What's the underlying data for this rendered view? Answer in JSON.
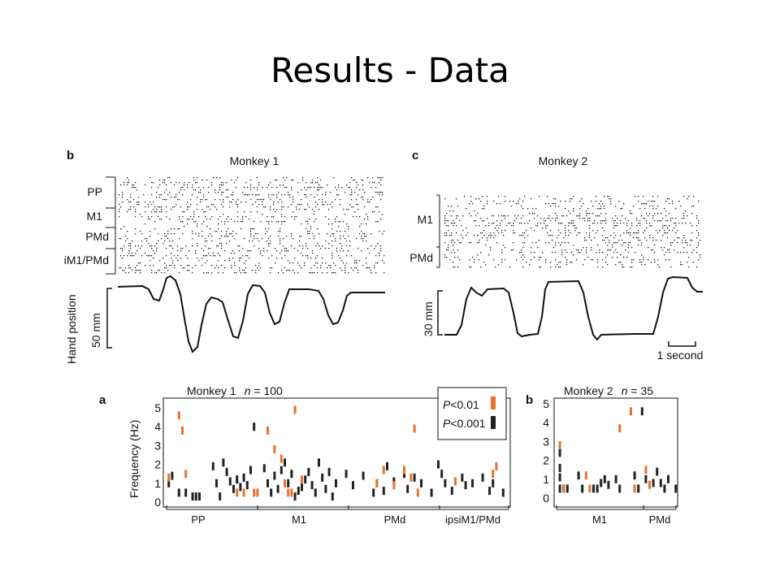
{
  "slide": {
    "title": "Results - Data"
  },
  "top_left": {
    "panel_label": "b",
    "title": "Monkey 1",
    "regions": [
      "PP",
      "M1",
      "PMd",
      "iM1/PMd"
    ],
    "hand_axis_label": "Hand position",
    "scale_label": "50 mm"
  },
  "top_right": {
    "panel_label": "c",
    "title": "Monkey 2",
    "regions": [
      "M1",
      "PMd"
    ],
    "scale_label": "30 mm",
    "time_scale_label": "1 second"
  },
  "chart_data": [
    {
      "type": "bar",
      "panel_label": "a",
      "title_prefix": "Monkey 1",
      "n_symbol": "n",
      "n_text": " = 100",
      "ylabel": "Frequency (Hz)",
      "ylim": [
        0,
        5
      ],
      "yticks": [
        "0",
        "1",
        "2",
        "3",
        "4",
        "5"
      ],
      "groups": [
        "PP",
        "M1",
        "PMd",
        "ipsiM1/PMd"
      ],
      "legend": [
        {
          "symbol": "P",
          "text": "<0.01",
          "color": "#e8732a"
        },
        {
          "symbol": "P",
          "text": "<0.001",
          "color": "#222222"
        }
      ],
      "markers_black": [
        [
          1,
          1.0
        ],
        [
          2,
          1.4
        ],
        [
          4,
          0.5
        ],
        [
          6,
          0.5
        ],
        [
          8,
          0.3
        ],
        [
          9,
          0.3
        ],
        [
          10,
          0.3
        ],
        [
          14,
          1.9
        ],
        [
          15,
          1.0
        ],
        [
          16,
          0.3
        ],
        [
          17,
          2.1
        ],
        [
          18,
          1.6
        ],
        [
          19,
          1.1
        ],
        [
          20,
          0.7
        ],
        [
          21,
          1.2
        ],
        [
          22,
          0.8
        ],
        [
          23,
          1.3
        ],
        [
          24,
          0.9
        ],
        [
          25,
          1.7
        ],
        [
          26,
          4.0
        ],
        [
          29,
          1.8
        ],
        [
          30,
          1.0
        ],
        [
          31,
          0.5
        ],
        [
          32,
          1.4
        ],
        [
          33,
          0.7
        ],
        [
          34,
          1.7
        ],
        [
          35,
          2.1
        ],
        [
          36,
          1.0
        ],
        [
          37,
          1.5
        ],
        [
          38,
          0.3
        ],
        [
          39,
          0.6
        ],
        [
          40,
          0.8
        ],
        [
          41,
          1.2
        ],
        [
          42,
          1.6
        ],
        [
          43,
          0.9
        ],
        [
          44,
          0.5
        ],
        [
          45,
          2.1
        ],
        [
          46,
          1.3
        ],
        [
          47,
          0.7
        ],
        [
          48,
          1.6
        ],
        [
          49,
          0.3
        ],
        [
          50,
          1.0
        ],
        [
          53,
          1.5
        ],
        [
          55,
          0.9
        ],
        [
          58,
          1.4
        ],
        [
          61,
          0.5
        ],
        [
          62,
          1.0
        ],
        [
          64,
          0.6
        ],
        [
          65,
          1.9
        ],
        [
          67,
          1.1
        ],
        [
          70,
          1.5
        ],
        [
          71,
          0.7
        ],
        [
          73,
          1.3
        ],
        [
          75,
          1.0
        ],
        [
          78,
          0.5
        ],
        [
          80,
          2.0
        ],
        [
          81,
          1.5
        ],
        [
          82,
          1.0
        ],
        [
          84,
          0.6
        ],
        [
          87,
          1.3
        ],
        [
          88,
          0.9
        ],
        [
          90,
          1.0
        ],
        [
          93,
          1.3
        ],
        [
          95,
          0.6
        ],
        [
          96,
          1.0
        ],
        [
          99,
          0.5
        ]
      ],
      "markers_orange": [
        [
          1,
          1.3
        ],
        [
          4,
          4.6
        ],
        [
          5,
          3.8
        ],
        [
          6,
          1.5
        ],
        [
          21,
          0.5
        ],
        [
          23,
          0.5
        ],
        [
          26,
          0.5
        ],
        [
          27,
          0.5
        ],
        [
          30,
          3.8
        ],
        [
          32,
          2.8
        ],
        [
          34,
          2.3
        ],
        [
          35,
          1.0
        ],
        [
          36,
          0.5
        ],
        [
          37,
          0.5
        ],
        [
          38,
          4.9
        ],
        [
          40,
          1.2
        ],
        [
          62,
          1.0
        ],
        [
          64,
          1.7
        ],
        [
          67,
          0.9
        ],
        [
          70,
          1.7
        ],
        [
          72,
          1.3
        ],
        [
          73,
          3.9
        ],
        [
          74,
          0.5
        ],
        [
          85,
          1.1
        ],
        [
          96,
          1.5
        ],
        [
          97,
          1.9
        ]
      ]
    },
    {
      "type": "bar",
      "panel_label": "b",
      "title_prefix": "Monkey 2",
      "n_symbol": "n",
      "n_text": " = 35",
      "ylim": [
        0,
        5
      ],
      "yticks": [
        "0",
        "1",
        "2",
        "3",
        "4",
        "5"
      ],
      "groups": [
        "M1",
        "PMd"
      ],
      "markers_black": [
        [
          1,
          0.5
        ],
        [
          1,
          1.1
        ],
        [
          1,
          1.6
        ],
        [
          1,
          2.4
        ],
        [
          2,
          0.5
        ],
        [
          3,
          0.5
        ],
        [
          6,
          1.2
        ],
        [
          7,
          0.5
        ],
        [
          10,
          0.5
        ],
        [
          11,
          0.5
        ],
        [
          12,
          0.8
        ],
        [
          13,
          1.0
        ],
        [
          14,
          0.7
        ],
        [
          16,
          1.0
        ],
        [
          17,
          0.5
        ],
        [
          21,
          1.2
        ],
        [
          22,
          0.5
        ],
        [
          23,
          4.6
        ],
        [
          24,
          1.0
        ],
        [
          26,
          0.8
        ],
        [
          27,
          1.4
        ],
        [
          28,
          0.8
        ],
        [
          29,
          0.5
        ],
        [
          30,
          1.0
        ],
        [
          32,
          0.5
        ]
      ],
      "markers_orange": [
        [
          1,
          2.8
        ],
        [
          2,
          0.5
        ],
        [
          8,
          1.2
        ],
        [
          9,
          0.5
        ],
        [
          17,
          3.7
        ],
        [
          20,
          4.6
        ],
        [
          21,
          0.5
        ],
        [
          24,
          1.5
        ],
        [
          25,
          0.7
        ]
      ]
    }
  ]
}
